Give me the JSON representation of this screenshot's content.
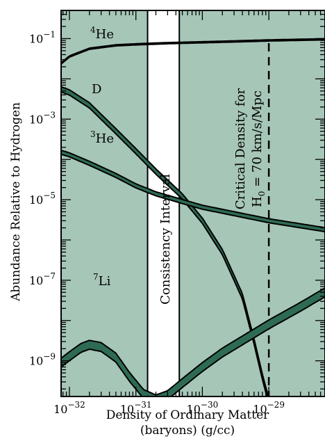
{
  "chart_data": {
    "type": "line",
    "title": "",
    "xlabel_line1": "Density of Ordinary Matter",
    "xlabel_line2": "(baryons) (g/cc)",
    "ylabel": "Abundance Relative to Hydrogen",
    "x_scale": "log",
    "y_scale": "log",
    "xlim": [
      7.5e-33,
      7e-29
    ],
    "ylim": [
      1.3e-10,
      0.5
    ],
    "x_ticks": [
      1e-32,
      1e-31,
      1e-30,
      1e-29
    ],
    "x_tick_labels": [
      {
        "base": "10",
        "exp": "−32"
      },
      {
        "base": "10",
        "exp": "−31"
      },
      {
        "base": "10",
        "exp": "−30"
      },
      {
        "base": "10",
        "exp": "−29"
      }
    ],
    "y_ticks": [
      1e-09,
      1e-07,
      1e-05,
      0.001,
      0.1
    ],
    "y_tick_labels": [
      {
        "base": "10",
        "exp": "−9"
      },
      {
        "base": "10",
        "exp": "−7"
      },
      {
        "base": "10",
        "exp": "−5"
      },
      {
        "base": "10",
        "exp": "−3"
      },
      {
        "base": "10",
        "exp": "−1"
      }
    ],
    "series": [
      {
        "name": "4He",
        "label_sup": "4",
        "label_text": "He",
        "x": [
          7.5e-33,
          1e-32,
          2e-32,
          5e-32,
          1e-31,
          3e-31,
          1e-30,
          3e-30,
          1e-29,
          7e-29
        ],
        "y": [
          0.024,
          0.036,
          0.056,
          0.068,
          0.072,
          0.077,
          0.081,
          0.085,
          0.09,
          0.096
        ],
        "width": 0.03
      },
      {
        "name": "D",
        "label_sup": "",
        "label_text": "D",
        "x": [
          7.5e-33,
          1e-32,
          2e-32,
          5e-32,
          1e-31,
          2e-31,
          5e-31,
          1e-30,
          2e-30,
          4e-30,
          6e-30,
          8e-30,
          1e-29,
          1.1e-29
        ],
        "y": [
          0.0055,
          0.0046,
          0.0022,
          0.0005,
          0.00016,
          5e-05,
          1.2e-05,
          3e-06,
          5e-07,
          4e-08,
          3e-09,
          4e-10,
          1e-10,
          3e-11
        ],
        "width": 0.13
      },
      {
        "name": "3He",
        "label_sup": "3",
        "label_text": "He",
        "x": [
          7.5e-33,
          1e-32,
          2e-32,
          5e-32,
          1e-31,
          2e-31,
          5e-31,
          1e-30,
          3e-30,
          1e-29,
          7e-29
        ],
        "y": [
          0.00015,
          0.00013,
          8e-05,
          4e-05,
          2.2e-05,
          1.4e-05,
          9e-06,
          6.5e-06,
          4.5e-06,
          3e-06,
          1.8e-06
        ],
        "width": 0.1
      },
      {
        "name": "7Li",
        "label_sup": "7",
        "label_text": "Li",
        "x": [
          7.5e-33,
          1e-32,
          1.5e-32,
          2e-32,
          3e-32,
          5e-32,
          8e-32,
          1.3e-31,
          2e-31,
          3e-31,
          5e-31,
          1e-30,
          2e-30,
          5e-30,
          1e-29,
          3e-29,
          7e-29
        ],
        "y": [
          9e-10,
          1.3e-09,
          2.1e-09,
          2.5e-09,
          2.2e-09,
          1.2e-09,
          4e-10,
          1.5e-10,
          1.1e-10,
          1.4e-10,
          2.8e-10,
          7e-10,
          1.6e-09,
          4e-09,
          8e-09,
          2.2e-08,
          5e-08
        ],
        "width": 0.22
      }
    ],
    "consistency_interval": {
      "x_min": 1.5e-31,
      "x_max": 4.5e-31,
      "label": "Consistency Interval"
    },
    "critical_density": {
      "x": 1e-29,
      "label_line1": "Critical Density for",
      "label_line2_pre": "H",
      "label_line2_sub": "0",
      "label_line2_post": " = 70 km/s/Mpc"
    },
    "colors": {
      "background_panel": "#a6c6b8",
      "band_fill": "#2e6b55",
      "outline": "#000000",
      "interval_fill": "#ffffff"
    }
  }
}
